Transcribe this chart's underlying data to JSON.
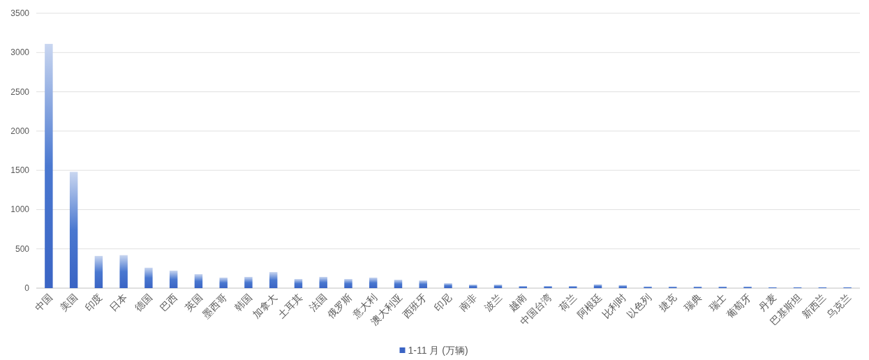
{
  "chart_data": {
    "type": "bar",
    "categories": [
      "中国",
      "美国",
      "印度",
      "日本",
      "德国",
      "巴西",
      "英国",
      "墨西哥",
      "韩国",
      "加拿大",
      "土耳其",
      "法国",
      "俄罗斯",
      "意大利",
      "澳大利亚",
      "西班牙",
      "印尼",
      "南非",
      "波兰",
      "越南",
      "中国台湾",
      "荷兰",
      "阿根廷",
      "比利时",
      "以色列",
      "捷克",
      "瑞典",
      "瑞士",
      "葡萄牙",
      "丹麦",
      "巴基斯坦",
      "新西兰",
      "乌克兰"
    ],
    "series": [
      {
        "name": "1-11 月 (万辆)",
        "color": "#3a64c4",
        "values": [
          3110,
          1480,
          410,
          420,
          260,
          223,
          178,
          134,
          143,
          205,
          116,
          143,
          116,
          134,
          107,
          98,
          62,
          45,
          45,
          27,
          27,
          27,
          48,
          39,
          21,
          20,
          20,
          20,
          20,
          12,
          12,
          12,
          12
        ]
      }
    ],
    "ylim": [
      0,
      3500
    ],
    "yticks": [
      0,
      500,
      1000,
      1500,
      2000,
      2500,
      3000,
      3500
    ],
    "grid": "y",
    "legend": "bottom"
  }
}
